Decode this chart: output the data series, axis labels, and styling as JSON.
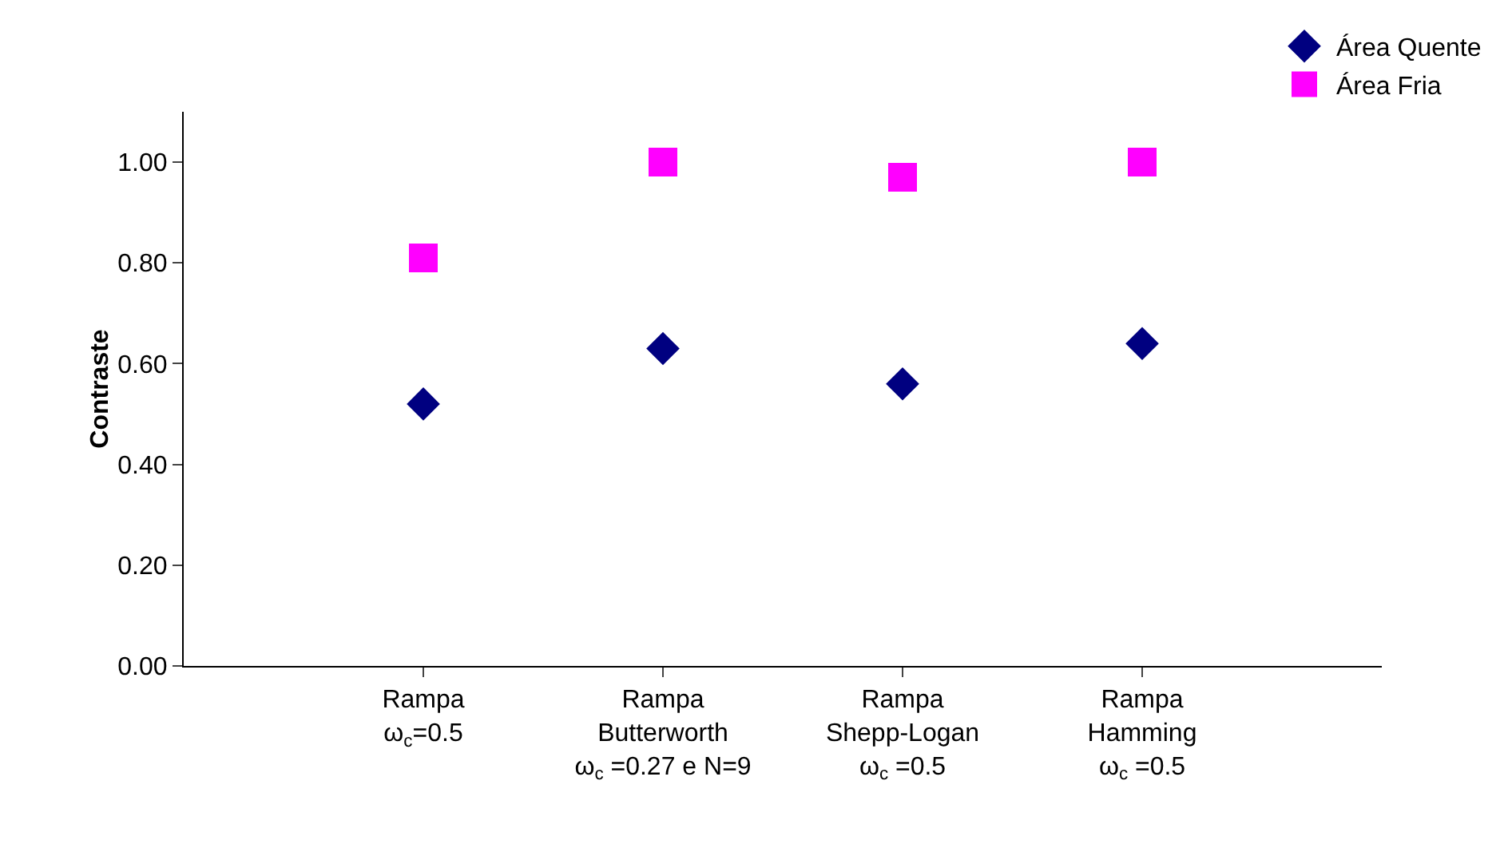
{
  "chart_data": {
    "type": "scatter",
    "ylabel": "Contraste",
    "categories": [
      "Rampa\nω$_{c}$=0.5",
      "Rampa\nButterworth\nω$_{c}$ =0.27 e N=9",
      "Rampa\nShepp-Logan\nω$_{c}$ =0.5",
      "Rampa\nHamming\nω$_{c}$ =0.5"
    ],
    "series": [
      {
        "name": "Área Quente",
        "color": "#000080",
        "marker": "diamond",
        "values": [
          0.52,
          0.63,
          0.56,
          0.64
        ]
      },
      {
        "name": "Área Fria",
        "color": "#ff00ff",
        "marker": "square",
        "values": [
          0.81,
          1.0,
          0.97,
          1.0
        ]
      }
    ],
    "ylim": [
      0,
      1.1
    ],
    "yticks": [
      {
        "value": 0,
        "label": "0.00"
      },
      {
        "value": 0.2,
        "label": "0.20"
      },
      {
        "value": 0.4,
        "label": "0.40"
      },
      {
        "value": 0.6,
        "label": "0.60"
      },
      {
        "value": 0.8,
        "label": "0.80"
      },
      {
        "value": 1,
        "label": "1.00"
      }
    ],
    "grid": false,
    "legend": "top right"
  }
}
